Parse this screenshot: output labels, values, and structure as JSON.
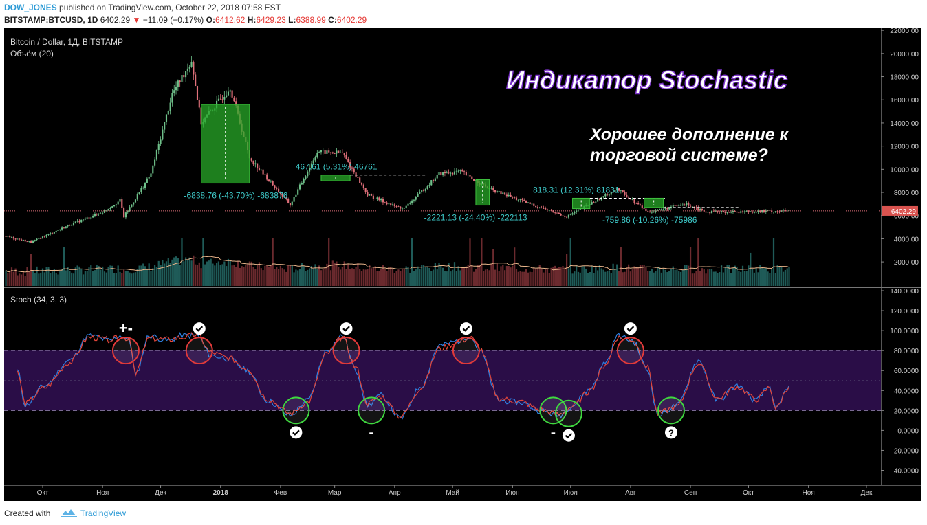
{
  "header": {
    "author": "DOW_JONES",
    "published_text": "published on TradingView.com, October 22, 2018 07:58 EST",
    "symbol": "BITSTAMP:BTCUSD, 1D",
    "last_price": "6402.29",
    "change_arrow": "▼",
    "change": "−11.09 (−0.17%)",
    "o_label": "O:",
    "o_value": "6412.62",
    "h_label": "H:",
    "h_value": "6429.23",
    "l_label": "L:",
    "l_value": "6388.99",
    "c_label": "C:",
    "c_value": "6402.29"
  },
  "footer": {
    "created_with": "Created with",
    "brand": "TradingView"
  },
  "chart_data": [
    {
      "type": "candlestick",
      "title": "Bitcoin / Dollar, 1Д, BITSTAMP",
      "subtitle": "Объём (20)",
      "annotation_title": "Индикатор Stochastic",
      "annotation_subtitle_lines": [
        "Хорошее дополнение к",
        "торговой системе?"
      ],
      "ylim": [
        0,
        22000
      ],
      "y_ticks": [
        2000,
        4000,
        6000,
        8000,
        10000,
        12000,
        14000,
        16000,
        18000,
        20000,
        22000
      ],
      "y_tick_labels": [
        "2000.00",
        "4000.00",
        "6000.00",
        "8000.00",
        "10000.00",
        "12000.00",
        "14000.00",
        "16000.00",
        "18000.00",
        "20000.00",
        "22000.00"
      ],
      "last_price_label": "6402.29",
      "price_path": [
        [
          "2017-09-12",
          4200
        ],
        [
          "2017-09-25",
          3700
        ],
        [
          "2017-10-15",
          5200
        ],
        [
          "2017-11-01",
          6300
        ],
        [
          "2017-11-10",
          7300
        ],
        [
          "2017-11-12",
          5900
        ],
        [
          "2017-11-26",
          9600
        ],
        [
          "2017-12-07",
          16500
        ],
        [
          "2017-12-17",
          19400
        ],
        [
          "2017-12-22",
          14000
        ],
        [
          "2018-01-06",
          17100
        ],
        [
          "2018-01-16",
          11000
        ],
        [
          "2018-02-06",
          6900
        ],
        [
          "2018-02-20",
          11500
        ],
        [
          "2018-03-05",
          11400
        ],
        [
          "2018-03-18",
          7800
        ],
        [
          "2018-04-01",
          6800
        ],
        [
          "2018-04-06",
          6600
        ],
        [
          "2018-04-24",
          9600
        ],
        [
          "2018-05-05",
          9800
        ],
        [
          "2018-05-20",
          8300
        ],
        [
          "2018-06-10",
          7000
        ],
        [
          "2018-06-29",
          5900
        ],
        [
          "2018-07-25",
          8300
        ],
        [
          "2018-08-10",
          6300
        ],
        [
          "2018-08-30",
          7000
        ],
        [
          "2018-09-10",
          6300
        ],
        [
          "2018-10-22",
          6400
        ]
      ],
      "volume_ma_label": "Объём (20)",
      "measurements": [
        {
          "label": "-6838.76 (-43.70%) -683876",
          "from": [
            "2017-12-22",
            15600
          ],
          "to": [
            "2018-01-16",
            8800
          ],
          "direction": "down"
        },
        {
          "label": "467.61 (5.31%) 46761",
          "from": [
            "2018-02-22",
            9000
          ],
          "to": [
            "2018-03-09",
            9500
          ],
          "direction": "up"
        },
        {
          "label": "-2221.13 (-24.40%) -222113",
          "from": [
            "2018-05-13",
            9100
          ],
          "to": [
            "2018-05-20",
            6900
          ],
          "direction": "down"
        },
        {
          "label": "818.31 (12.31%) 81831",
          "from": [
            "2018-07-02",
            6600
          ],
          "to": [
            "2018-07-11",
            7500
          ],
          "direction": "up"
        },
        {
          "label": "-759.86 (-10.26%) -75986",
          "from": [
            "2018-08-08",
            7500
          ],
          "to": [
            "2018-08-18",
            6700
          ],
          "direction": "down"
        }
      ]
    },
    {
      "type": "line",
      "title": "Stoch (34, 3, 3)",
      "ylim": [
        -40,
        140
      ],
      "y_ticks": [
        -40,
        -20,
        0,
        20,
        40,
        60,
        80,
        100,
        120,
        140
      ],
      "y_tick_labels": [
        "-40.0000",
        "-20.0000",
        "0.0000",
        "20.0000",
        "40.0000",
        "60.0000",
        "80.0000",
        "100.0000",
        "120.0000",
        "140.0000"
      ],
      "band": [
        20,
        80
      ],
      "series": [
        {
          "color": "#2e7fe0",
          "points": [
            [
              "2017-09-18",
              60
            ],
            [
              "2017-09-22",
              25
            ],
            [
              "2017-10-02",
              45
            ],
            [
              "2017-10-15",
              70
            ],
            [
              "2017-10-25",
              95
            ],
            [
              "2017-11-05",
              90
            ],
            [
              "2017-11-10",
              95
            ],
            [
              "2017-11-15",
              90
            ],
            [
              "2017-11-18",
              55
            ],
            [
              "2017-11-25",
              95
            ],
            [
              "2017-12-05",
              90
            ],
            [
              "2017-12-12",
              95
            ],
            [
              "2017-12-20",
              95
            ],
            [
              "2017-12-27",
              75
            ],
            [
              "2018-01-05",
              72
            ],
            [
              "2018-01-15",
              60
            ],
            [
              "2018-01-25",
              30
            ],
            [
              "2018-02-06",
              15
            ],
            [
              "2018-02-15",
              30
            ],
            [
              "2018-02-25",
              80
            ],
            [
              "2018-03-05",
              95
            ],
            [
              "2018-03-12",
              60
            ],
            [
              "2018-03-18",
              25
            ],
            [
              "2018-03-25",
              35
            ],
            [
              "2018-04-04",
              12
            ],
            [
              "2018-04-15",
              45
            ],
            [
              "2018-04-24",
              85
            ],
            [
              "2018-05-05",
              90
            ],
            [
              "2018-05-10",
              95
            ],
            [
              "2018-05-15",
              80
            ],
            [
              "2018-05-25",
              30
            ],
            [
              "2018-06-05",
              28
            ],
            [
              "2018-06-15",
              20
            ],
            [
              "2018-06-25",
              15
            ],
            [
              "2018-07-02",
              25
            ],
            [
              "2018-07-10",
              40
            ],
            [
              "2018-07-20",
              70
            ],
            [
              "2018-07-25",
              95
            ],
            [
              "2018-08-02",
              90
            ],
            [
              "2018-08-10",
              60
            ],
            [
              "2018-08-15",
              15
            ],
            [
              "2018-08-25",
              25
            ],
            [
              "2018-09-05",
              70
            ],
            [
              "2018-09-15",
              30
            ],
            [
              "2018-09-25",
              45
            ],
            [
              "2018-10-05",
              30
            ],
            [
              "2018-10-12",
              45
            ],
            [
              "2018-10-15",
              20
            ],
            [
              "2018-10-22",
              45
            ]
          ]
        },
        {
          "color": "#e0453a",
          "points": [
            [
              "2017-09-18",
              58
            ],
            [
              "2017-09-22",
              27
            ],
            [
              "2017-10-02",
              43
            ],
            [
              "2017-10-15",
              68
            ],
            [
              "2017-10-25",
              93
            ],
            [
              "2017-11-05",
              91
            ],
            [
              "2017-11-10",
              93
            ],
            [
              "2017-11-15",
              92
            ],
            [
              "2017-11-18",
              58
            ],
            [
              "2017-11-25",
              92
            ],
            [
              "2017-12-05",
              91
            ],
            [
              "2017-12-12",
              93
            ],
            [
              "2017-12-20",
              96
            ],
            [
              "2017-12-27",
              78
            ],
            [
              "2018-01-05",
              73
            ],
            [
              "2018-01-15",
              62
            ],
            [
              "2018-01-25",
              32
            ],
            [
              "2018-02-06",
              17
            ],
            [
              "2018-02-15",
              28
            ],
            [
              "2018-02-25",
              77
            ],
            [
              "2018-03-05",
              93
            ],
            [
              "2018-03-12",
              63
            ],
            [
              "2018-03-18",
              27
            ],
            [
              "2018-03-25",
              34
            ],
            [
              "2018-04-04",
              14
            ],
            [
              "2018-04-15",
              43
            ],
            [
              "2018-04-24",
              82
            ],
            [
              "2018-05-05",
              89
            ],
            [
              "2018-05-10",
              94
            ],
            [
              "2018-05-15",
              82
            ],
            [
              "2018-05-25",
              32
            ],
            [
              "2018-06-05",
              29
            ],
            [
              "2018-06-15",
              21
            ],
            [
              "2018-06-25",
              16
            ],
            [
              "2018-07-02",
              24
            ],
            [
              "2018-07-10",
              38
            ],
            [
              "2018-07-20",
              68
            ],
            [
              "2018-07-25",
              93
            ],
            [
              "2018-08-02",
              91
            ],
            [
              "2018-08-10",
              63
            ],
            [
              "2018-08-15",
              17
            ],
            [
              "2018-08-25",
              24
            ],
            [
              "2018-09-05",
              67
            ],
            [
              "2018-09-15",
              32
            ],
            [
              "2018-09-25",
              44
            ],
            [
              "2018-10-05",
              31
            ],
            [
              "2018-10-12",
              43
            ],
            [
              "2018-10-15",
              22
            ],
            [
              "2018-10-22",
              44
            ]
          ]
        }
      ],
      "circles": [
        {
          "date": "2017-11-13",
          "value": 80,
          "color": "red",
          "mark": "+-"
        },
        {
          "date": "2017-12-21",
          "value": 80,
          "color": "red",
          "mark": "check"
        },
        {
          "date": "2018-02-09",
          "value": 20,
          "color": "green",
          "mark": "check"
        },
        {
          "date": "2018-03-07",
          "value": 80,
          "color": "red",
          "mark": "check"
        },
        {
          "date": "2018-03-20",
          "value": 20,
          "color": "green",
          "mark": "-"
        },
        {
          "date": "2018-05-08",
          "value": 80,
          "color": "red",
          "mark": "check"
        },
        {
          "date": "2018-06-22",
          "value": 20,
          "color": "green",
          "mark": "-"
        },
        {
          "date": "2018-06-30",
          "value": 17,
          "color": "green",
          "mark": "check"
        },
        {
          "date": "2018-08-01",
          "value": 80,
          "color": "red",
          "mark": "check"
        },
        {
          "date": "2018-08-22",
          "value": 20,
          "color": "green",
          "mark": "?"
        }
      ],
      "x_ticks": [
        {
          "date": "2017-10-01",
          "label": "Окт"
        },
        {
          "date": "2017-11-01",
          "label": "Ноя"
        },
        {
          "date": "2017-12-01",
          "label": "Дек"
        },
        {
          "date": "2018-01-01",
          "label": "2018"
        },
        {
          "date": "2018-02-01",
          "label": "Фев"
        },
        {
          "date": "2018-03-01",
          "label": "Мар"
        },
        {
          "date": "2018-04-01",
          "label": "Апр"
        },
        {
          "date": "2018-05-01",
          "label": "Май"
        },
        {
          "date": "2018-06-01",
          "label": "Июн"
        },
        {
          "date": "2018-07-01",
          "label": "Июл"
        },
        {
          "date": "2018-08-01",
          "label": "Авг"
        },
        {
          "date": "2018-09-01",
          "label": "Сен"
        },
        {
          "date": "2018-10-01",
          "label": "Окт"
        },
        {
          "date": "2018-11-01",
          "label": "Ноя"
        },
        {
          "date": "2018-12-01",
          "label": "Дек"
        }
      ]
    }
  ]
}
